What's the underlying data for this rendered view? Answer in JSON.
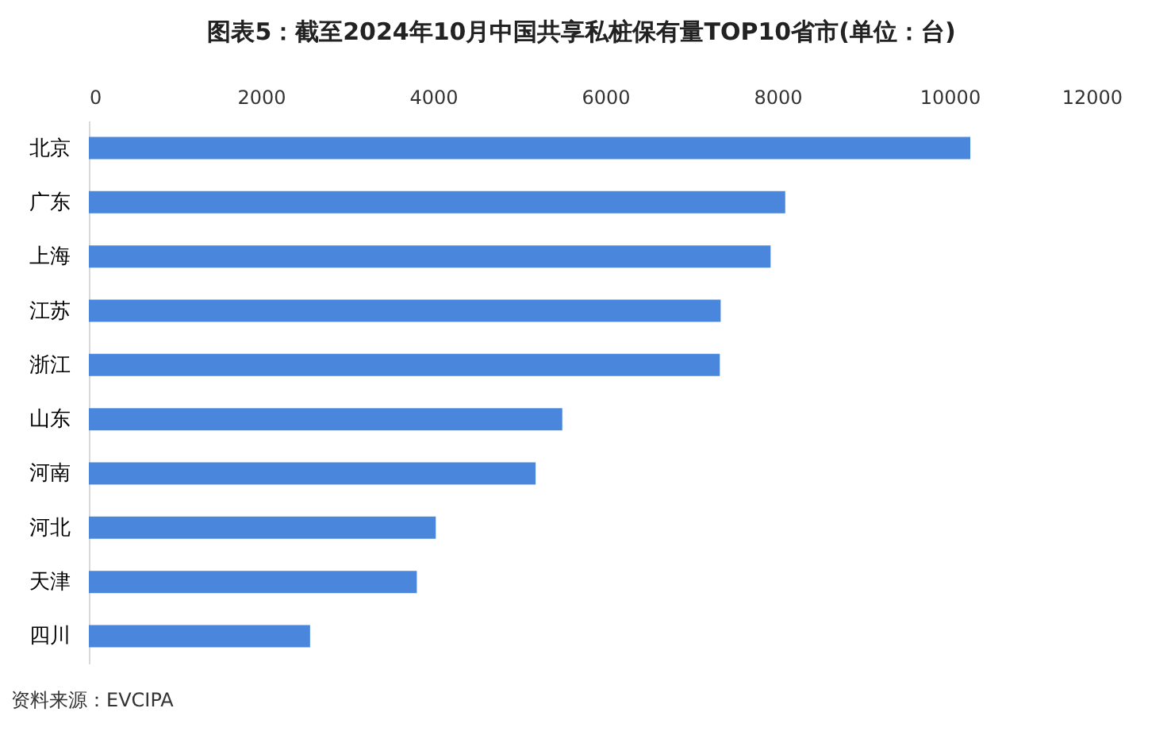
{
  "chart_data": {
    "type": "bar",
    "orientation": "horizontal",
    "title": "图表5：截至2024年10月中国共享私桩保有量TOP10省市(单位：台)",
    "categories": [
      "北京",
      "广东",
      "上海",
      "江苏",
      "浙江",
      "山东",
      "河南",
      "河北",
      "天津",
      "四川"
    ],
    "values": [
      10240,
      8090,
      7920,
      7340,
      7330,
      5500,
      5190,
      4030,
      3810,
      2570
    ],
    "color": "#4a86dc",
    "xlim": [
      0,
      12000
    ],
    "xticks": [
      0,
      2000,
      4000,
      6000,
      8000,
      10000,
      12000
    ],
    "annotations": [
      "资料来源：EVCIPA"
    ]
  }
}
